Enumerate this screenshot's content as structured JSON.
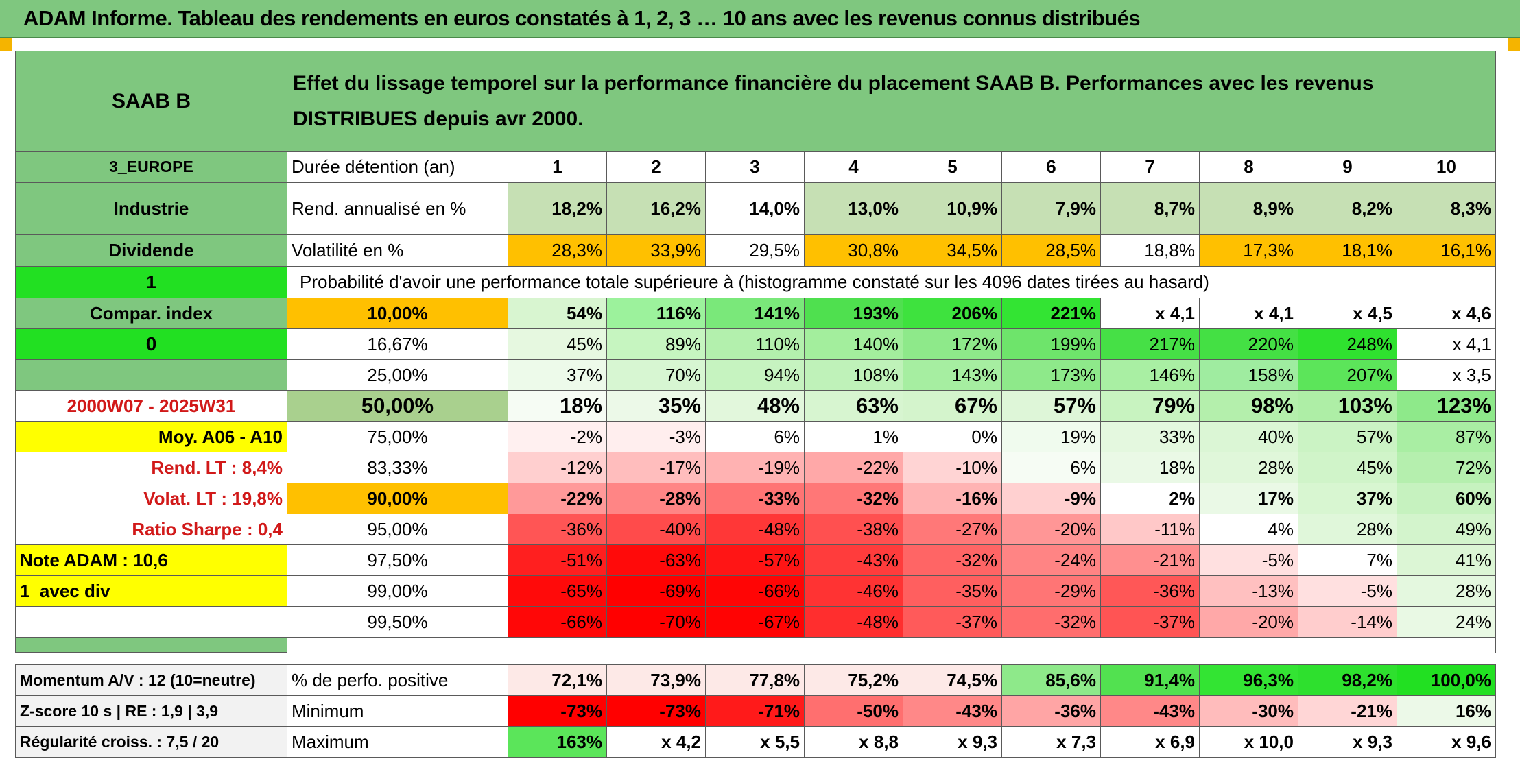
{
  "banner": "ADAM Informe. Tableau des rendements en euros constatés à 1, 2, 3 … 10 ans avec les revenus connus distribués",
  "colors": {
    "green": "#7fc77f",
    "bright_green": "#22e022",
    "pale_green": "#c6e0b4",
    "orange": "#ffc000",
    "yellow": "#ffff00",
    "red_text": "#d11919"
  },
  "sidebar": {
    "name": "SAAB B",
    "region": "3_EUROPE",
    "sector": "Industrie",
    "dividend": "Dividende",
    "flag1": "1",
    "compar": "Compar. index",
    "flag0": "0",
    "period": "2000W07 - 2025W31",
    "moy": "Moy. A06 - A10",
    "rend_lt": "Rend. LT :   8,4%",
    "volat_lt": "Volat. LT :   19,8%",
    "sharpe": "Ratio Sharpe :    0,4",
    "note": "Note ADAM : 10,6",
    "mode": "1_avec div",
    "momentum": "Momentum A/V : 12 (10=neutre)",
    "zscore": "Z-score 10 s | RE : 1,9 | 3,9",
    "regularite": "Régularité croiss. : 7,5 / 20"
  },
  "title": "Effet du lissage temporel sur la performance financière du placement SAAB B. Performances avec les revenus DISTRIBUES depuis avr 2000.",
  "header": {
    "label": "Durée détention (an)",
    "years": [
      "1",
      "2",
      "3",
      "4",
      "5",
      "6",
      "7",
      "8",
      "9",
      "10"
    ]
  },
  "rend": {
    "label": "Rend. annualisé en %",
    "values": [
      "18,2%",
      "16,2%",
      "14,0%",
      "13,0%",
      "10,9%",
      "7,9%",
      "8,7%",
      "8,9%",
      "8,2%",
      "8,3%"
    ]
  },
  "vol": {
    "label": "Volatilité en %",
    "values": [
      "28,3%",
      "33,9%",
      "29,5%",
      "30,8%",
      "34,5%",
      "28,5%",
      "18,8%",
      "17,3%",
      "18,1%",
      "16,1%"
    ]
  },
  "prob_title": "Probabilité d'avoir une performance totale supérieure à (histogramme constaté sur les 4096 dates tirées au hasard)",
  "prob_rows": [
    {
      "pct": "10,00%",
      "values": [
        "54%",
        "116%",
        "141%",
        "193%",
        "206%",
        "221%",
        "x 4,1",
        "x 4,1",
        "x 4,5",
        "x 4,6"
      ]
    },
    {
      "pct": "16,67%",
      "values": [
        "45%",
        "89%",
        "110%",
        "140%",
        "172%",
        "199%",
        "217%",
        "220%",
        "248%",
        "x 4,1"
      ]
    },
    {
      "pct": "25,00%",
      "values": [
        "37%",
        "70%",
        "94%",
        "108%",
        "143%",
        "173%",
        "146%",
        "158%",
        "207%",
        "x 3,5"
      ]
    },
    {
      "pct": "50,00%",
      "values": [
        "18%",
        "35%",
        "48%",
        "63%",
        "67%",
        "57%",
        "79%",
        "98%",
        "103%",
        "123%"
      ]
    },
    {
      "pct": "75,00%",
      "values": [
        "-2%",
        "-3%",
        "6%",
        "1%",
        "0%",
        "19%",
        "33%",
        "40%",
        "57%",
        "87%"
      ]
    },
    {
      "pct": "83,33%",
      "values": [
        "-12%",
        "-17%",
        "-19%",
        "-22%",
        "-10%",
        "6%",
        "18%",
        "28%",
        "45%",
        "72%"
      ]
    },
    {
      "pct": "90,00%",
      "values": [
        "-22%",
        "-28%",
        "-33%",
        "-32%",
        "-16%",
        "-9%",
        "2%",
        "17%",
        "37%",
        "60%"
      ]
    },
    {
      "pct": "95,00%",
      "values": [
        "-36%",
        "-40%",
        "-48%",
        "-38%",
        "-27%",
        "-20%",
        "-11%",
        "4%",
        "28%",
        "49%"
      ]
    },
    {
      "pct": "97,50%",
      "values": [
        "-51%",
        "-63%",
        "-57%",
        "-43%",
        "-32%",
        "-24%",
        "-21%",
        "-5%",
        "7%",
        "41%"
      ]
    },
    {
      "pct": "99,00%",
      "values": [
        "-65%",
        "-69%",
        "-66%",
        "-46%",
        "-35%",
        "-29%",
        "-36%",
        "-13%",
        "-5%",
        "28%"
      ]
    },
    {
      "pct": "99,50%",
      "values": [
        "-66%",
        "-70%",
        "-67%",
        "-48%",
        "-37%",
        "-32%",
        "-37%",
        "-20%",
        "-14%",
        "24%"
      ]
    }
  ],
  "stats": [
    {
      "label": "% de perfo. positive",
      "values": [
        "72,1%",
        "73,9%",
        "77,8%",
        "75,2%",
        "74,5%",
        "85,6%",
        "91,4%",
        "96,3%",
        "98,2%",
        "100,0%"
      ]
    },
    {
      "label": "Minimum",
      "values": [
        "-73%",
        "-73%",
        "-71%",
        "-50%",
        "-43%",
        "-36%",
        "-43%",
        "-30%",
        "-21%",
        "16%"
      ]
    },
    {
      "label": "Maximum",
      "values": [
        "163%",
        "x 4,2",
        "x 5,5",
        "x 8,8",
        "x 9,3",
        "x 7,3",
        "x 6,9",
        "x 10,0",
        "x 9,3",
        "x 9,6"
      ]
    }
  ]
}
